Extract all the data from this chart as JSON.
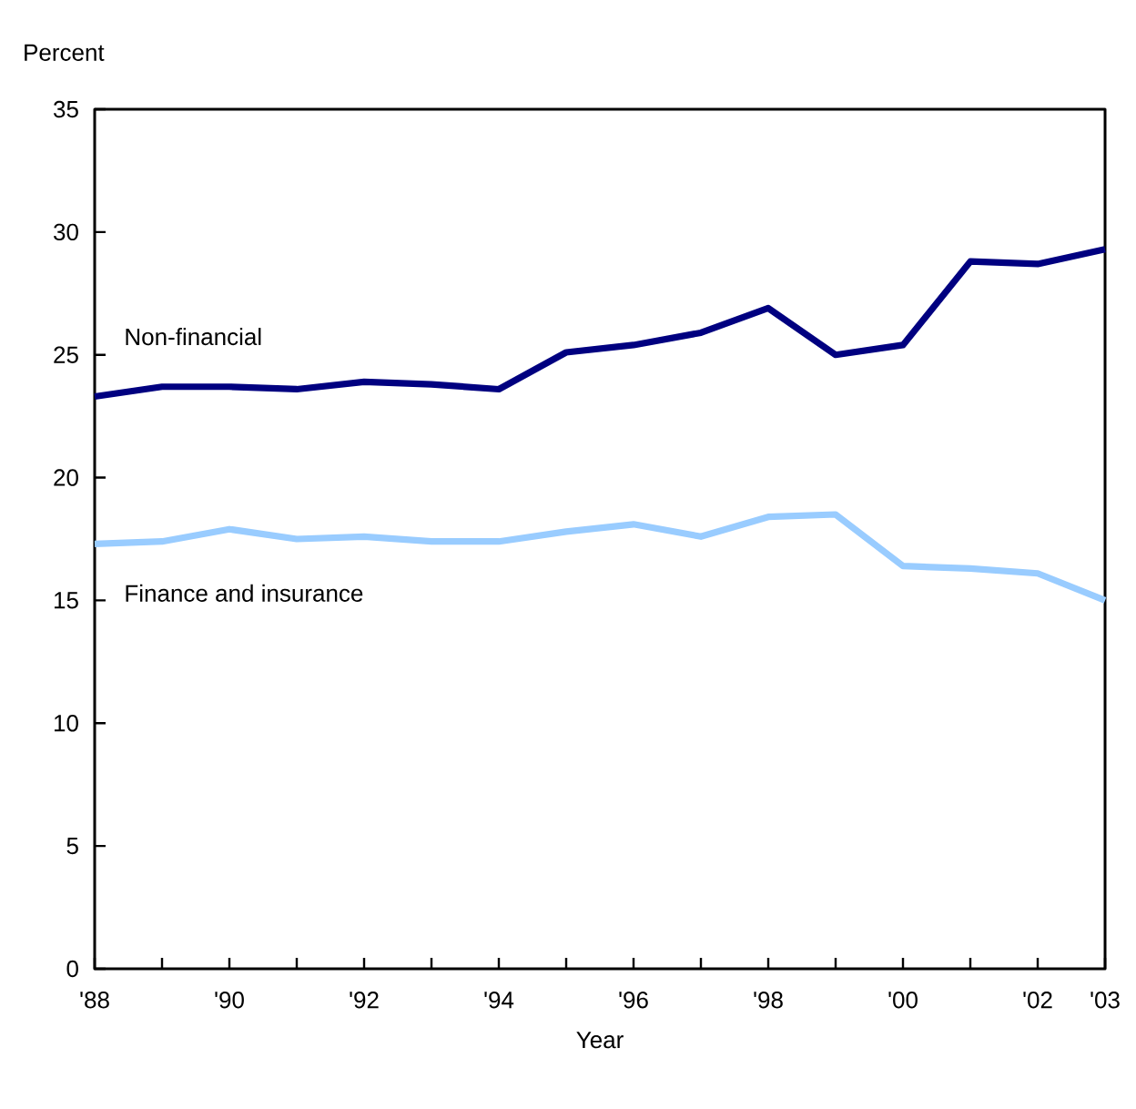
{
  "chart_data": {
    "type": "line",
    "xlabel": "Year",
    "ylabel": "Percent",
    "x": [
      1988,
      1989,
      1990,
      1991,
      1992,
      1993,
      1994,
      1995,
      1996,
      1997,
      1998,
      1999,
      2000,
      2001,
      2002,
      2003
    ],
    "series": [
      {
        "name": "Non-financial",
        "color": "#000080",
        "values": [
          23.3,
          23.7,
          23.7,
          23.6,
          23.9,
          23.8,
          23.6,
          25.1,
          25.4,
          25.9,
          26.9,
          25.0,
          25.4,
          28.8,
          28.7,
          29.3
        ]
      },
      {
        "name": "Finance and insurance",
        "color": "#99ccff",
        "values": [
          17.3,
          17.4,
          17.9,
          17.5,
          17.6,
          17.4,
          17.4,
          17.8,
          18.1,
          17.6,
          18.4,
          18.5,
          16.4,
          16.3,
          16.1,
          15.0
        ]
      }
    ],
    "xlim": [
      1988,
      2003
    ],
    "ylim": [
      0,
      35
    ],
    "yticks": [
      0,
      5,
      10,
      15,
      20,
      25,
      30,
      35
    ],
    "xticks": [
      {
        "value": 1988,
        "label": "'88"
      },
      {
        "value": 1989,
        "label": null
      },
      {
        "value": 1990,
        "label": "'90"
      },
      {
        "value": 1991,
        "label": null
      },
      {
        "value": 1992,
        "label": "'92"
      },
      {
        "value": 1993,
        "label": null
      },
      {
        "value": 1994,
        "label": "'94"
      },
      {
        "value": 1995,
        "label": null
      },
      {
        "value": 1996,
        "label": "'96"
      },
      {
        "value": 1997,
        "label": null
      },
      {
        "value": 1998,
        "label": "'98"
      },
      {
        "value": 1999,
        "label": null
      },
      {
        "value": 2000,
        "label": "'00"
      },
      {
        "value": 2001,
        "label": null
      },
      {
        "value": 2002,
        "label": "'02"
      },
      {
        "value": 2003,
        "label": "'03"
      }
    ],
    "grid": false,
    "legend": false,
    "marker": "none",
    "line_style": "solid"
  }
}
